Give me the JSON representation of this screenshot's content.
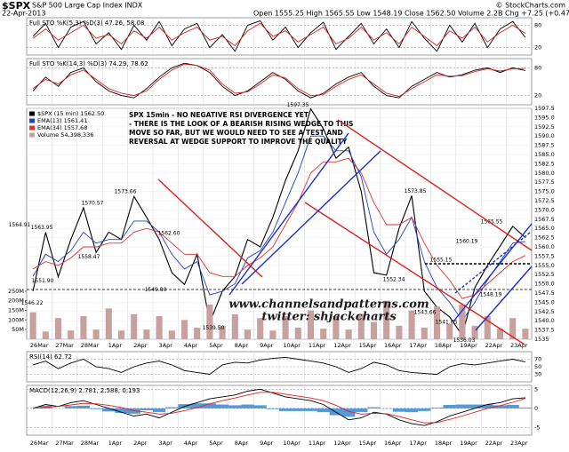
{
  "header": {
    "symbol": "$SPX",
    "name": "S&P 500 Large Cap Index INDX",
    "date": "22-Apr-2013",
    "quote": "Open 1555.25  High 1565.55  Low 1548.19  Close 1562.50  Volume 2.2B  Chg +7.25 (+0.47%)",
    "credit": "© StockCharts.com"
  },
  "chart_data": [
    {
      "type": "line",
      "title": "Full STO %K(5,3) %D(3) 47.26, 58.08",
      "ylim": [
        0,
        100
      ],
      "yticks": [
        20,
        80
      ],
      "series": [
        {
          "color": "#000000",
          "values": [
            50,
            85,
            20,
            75,
            90,
            30,
            60,
            15,
            80,
            40,
            90,
            25,
            70,
            85,
            20,
            55,
            10,
            80,
            92,
            40,
            75,
            20,
            60,
            88,
            15,
            50,
            85,
            30,
            70,
            20,
            90,
            45,
            10,
            80,
            35,
            85,
            20,
            70,
            90,
            47.26
          ]
        },
        {
          "color": "#e02020",
          "values": [
            45,
            70,
            40,
            60,
            80,
            45,
            55,
            30,
            65,
            45,
            75,
            40,
            60,
            75,
            40,
            50,
            25,
            65,
            85,
            50,
            65,
            35,
            55,
            75,
            30,
            45,
            75,
            40,
            60,
            30,
            75,
            50,
            25,
            65,
            45,
            75,
            35,
            60,
            80,
            58.08
          ]
        }
      ]
    },
    {
      "type": "line",
      "title": "Full STO %K(14,3) %D(3) 74.29, 78.62",
      "ylim": [
        0,
        100
      ],
      "yticks": [
        20,
        80
      ],
      "series": [
        {
          "color": "#000000",
          "values": [
            30,
            60,
            40,
            70,
            80,
            50,
            30,
            20,
            15,
            35,
            60,
            80,
            90,
            85,
            70,
            40,
            20,
            30,
            50,
            70,
            55,
            30,
            15,
            25,
            45,
            60,
            70,
            40,
            20,
            15,
            40,
            55,
            70,
            60,
            65,
            75,
            80,
            70,
            80,
            74.29
          ]
        },
        {
          "color": "#e02020",
          "values": [
            35,
            55,
            45,
            65,
            75,
            55,
            35,
            25,
            20,
            30,
            55,
            75,
            88,
            85,
            75,
            45,
            25,
            28,
            45,
            65,
            58,
            35,
            20,
            22,
            40,
            55,
            65,
            45,
            25,
            18,
            35,
            50,
            65,
            62,
            63,
            72,
            78,
            73,
            78,
            78.62
          ]
        }
      ]
    },
    {
      "type": "price",
      "ylim": [
        1535,
        1597.5
      ],
      "yticks": [
        1535,
        1537.5,
        {
          "value": 1540,
          "label": "1540.0"
        },
        1542.5,
        {
          "value": 1545,
          "label": "1545.0"
        },
        1547.5,
        {
          "value": 1550,
          "label": "1550.0"
        },
        1552.5,
        {
          "value": 1555,
          "label": "1555.0"
        },
        1557.5,
        {
          "value": 1560,
          "label": "1560.0"
        },
        1562.5,
        {
          "value": 1565,
          "label": "1565.0"
        },
        1567.5,
        {
          "value": 1570,
          "label": "1570.0"
        },
        1572.5,
        {
          "value": 1575,
          "label": "1575.0"
        },
        1577.5,
        {
          "value": 1580,
          "label": "1580.0"
        },
        1582.5,
        {
          "value": 1585,
          "label": "1585.0"
        },
        1587.5,
        {
          "value": 1590,
          "label": "1590.0"
        },
        1592.5,
        {
          "value": 1595,
          "label": "1595.0"
        },
        1597.5
      ],
      "y2lim": [
        0,
        1200
      ],
      "y2ticks": [
        {
          "value": 50,
          "label": "50M"
        },
        {
          "value": 100,
          "label": "100M"
        },
        {
          "value": 150,
          "label": "150M"
        },
        {
          "value": 200,
          "label": "200M"
        },
        {
          "value": 250,
          "label": "250M"
        }
      ],
      "days": [
        "26Mar",
        "27Mar",
        "28Mar",
        "1Apr",
        "2Apr",
        "3Apr",
        "4Apr",
        "5Apr",
        "8Apr",
        "9Apr",
        "10Apr",
        "11Apr",
        "12Apr",
        "15Apr",
        "16Apr",
        "17Apr",
        "18Apr",
        "19Apr",
        "22Apr",
        "23Apr"
      ],
      "series": [
        {
          "name": "$SPX (15 min) 1562.50",
          "color": "#000000",
          "values": [
            1548,
            1563.95,
            1551.9,
            1562,
            1570.57,
            1558.47,
            1564,
            1562,
            1573.66,
            1568,
            1562,
            1553,
            1549.8,
            1558,
            1539.5,
            1548,
            1552,
            1562,
            1560,
            1568,
            1578,
            1586,
            1597.35,
            1592,
            1584,
            1587,
            1575,
            1553,
            1552.34,
            1565,
            1573.85,
            1548,
            1543.66,
            1541.05,
            1536.03,
            1549,
            1555,
            1560.19,
            1565.55,
            1562.5
          ]
        },
        {
          "name": "EMA(13) 1561.41",
          "color": "#2040c0",
          "values": [
            1552,
            1558,
            1556,
            1559,
            1564,
            1561,
            1562,
            1562,
            1567,
            1567,
            1564,
            1558,
            1554,
            1556,
            1547,
            1548,
            1550,
            1557,
            1559,
            1564,
            1572,
            1580,
            1590,
            1590,
            1586,
            1586,
            1579,
            1564,
            1558,
            1562,
            1568,
            1556,
            1549,
            1545,
            1540,
            1545,
            1551,
            1556,
            1561,
            1561.41
          ]
        },
        {
          "name": "EMA(34) 1557.68",
          "color": "#e03030",
          "values": [
            1554,
            1556,
            1555,
            1557,
            1560,
            1560,
            1561,
            1561,
            1564,
            1565,
            1564,
            1561,
            1558,
            1558,
            1553,
            1552,
            1552,
            1555,
            1557,
            1560,
            1566,
            1572,
            1580,
            1583,
            1583,
            1584,
            1580,
            1572,
            1566,
            1566,
            1568,
            1561,
            1555,
            1551,
            1546,
            1547,
            1550,
            1553,
            1556,
            1557.68
          ]
        },
        {
          "name": "Volume 54,398,336",
          "color": "#c8a0a0",
          "axis": "y2",
          "kind": "volume",
          "values": [
            140,
            40,
            110,
            45,
            120,
            50,
            160,
            45,
            130,
            50,
            120,
            45,
            100,
            60,
            180,
            70,
            130,
            50,
            110,
            45,
            120,
            60,
            150,
            55,
            120,
            50,
            130,
            90,
            200,
            70,
            150,
            60,
            170,
            80,
            180,
            70,
            120,
            55,
            110,
            54.398336
          ]
        }
      ],
      "annotations": [
        1564.91,
        1563.95,
        {
          "value": 1551.9,
          "label": "1551.90"
        },
        1546.22,
        1570.57,
        1558.47,
        1573.66,
        {
          "value": 1562.6,
          "label": "1562.60"
        },
        {
          "value": 1549.8,
          "label": "1549.80"
        },
        {
          "value": 1539.5,
          "label": "1539.50"
        },
        1597.35,
        1552.34,
        1573.85,
        1555.15,
        1543.66,
        1541.05,
        1536.03,
        1548.19,
        1560.19,
        1565.55
      ],
      "notes": [
        "SPX 15min - NO NEGATIVE RSI DIVERGENCE YET",
        "- THERE IS THE LOOK OF A BEARISH RISING WEDGE TO THIS",
        "MOVE SO FAR, BUT WE WOULD NEED TO SEE A TEST AND",
        "REVERSAL AT WEDGE SUPPORT TO IMPROVE THE QUALITY"
      ],
      "watermark": [
        "www.channelsandpatterns.com",
        "twitter: shjackcharts"
      ]
    },
    {
      "type": "line",
      "title": "RSI(14) 62.72",
      "ylim": [
        10,
        90
      ],
      "yticks": [
        30,
        50,
        70
      ],
      "series": [
        {
          "color": "#000000",
          "values": [
            55,
            65,
            45,
            60,
            70,
            50,
            45,
            35,
            50,
            60,
            65,
            55,
            40,
            35,
            30,
            55,
            62,
            60,
            68,
            72,
            75,
            70,
            65,
            60,
            50,
            35,
            45,
            62,
            55,
            40,
            35,
            32,
            30,
            50,
            58,
            55,
            60,
            65,
            70,
            62.72
          ]
        }
      ]
    },
    {
      "type": "line",
      "title": "MACD(12,26,9) 2.781, 2.588, 0.193",
      "ylim": [
        -7,
        6
      ],
      "yticks": [
        -5,
        0,
        5
      ],
      "series": [
        {
          "color": "#2a7fd0",
          "kind": "histogram",
          "values": [
            0,
            0.7,
            0,
            0.6,
            0.7,
            -0.2,
            -0.8,
            -1.2,
            -1.4,
            -0.5,
            -1,
            0.3,
            1.1,
            1.3,
            1.3,
            1,
            0.8,
            1,
            0.8,
            -0.2,
            -0.7,
            -0.7,
            -0.7,
            -1,
            -1.8,
            -2.2,
            -1,
            0.3,
            -0.1,
            -0.9,
            -1,
            -0.7,
            0.2,
            0.9,
            1,
            1,
            1,
            0.8,
            0.9,
            0.193
          ]
        },
        {
          "color": "#000000",
          "values": [
            0,
            1,
            0.5,
            1.5,
            2,
            1,
            0,
            -1,
            -2,
            -1.5,
            -2.5,
            -1,
            0.5,
            1.5,
            2.5,
            3,
            3.5,
            4.5,
            5,
            4,
            3,
            2.5,
            2,
            1,
            -1,
            -3,
            -2.5,
            -1,
            -1.5,
            -3,
            -4,
            -4.5,
            -3.5,
            -2,
            -1,
            0,
            1,
            1.5,
            2.5,
            2.781
          ]
        },
        {
          "color": "#e02020",
          "values": [
            0,
            0.3,
            0.5,
            0.9,
            1.3,
            1.2,
            0.8,
            0.2,
            -0.6,
            -1,
            -1.5,
            -1.3,
            -0.6,
            0.2,
            1.2,
            2,
            2.7,
            3.5,
            4.2,
            4.2,
            3.7,
            3.2,
            2.7,
            2,
            0.8,
            -0.8,
            -1.5,
            -1.3,
            -1.4,
            -2.1,
            -3,
            -3.8,
            -3.7,
            -2.9,
            -2,
            -1,
            0,
            0.7,
            1.6,
            2.588
          ]
        }
      ]
    }
  ]
}
